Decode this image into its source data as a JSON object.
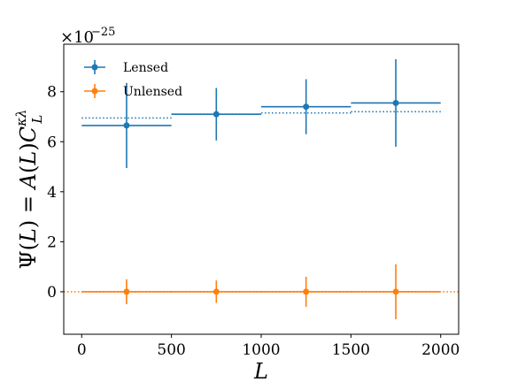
{
  "chart_data": {
    "type": "scatter",
    "xlabel": "L",
    "ylabel": "Ψ(L) = A(L)C_L^{κλ}",
    "y_multiplier": "×10⁻²⁵",
    "xlim": [
      -100,
      2100
    ],
    "ylim": [
      -1.7,
      9.9
    ],
    "xticks": [
      0,
      500,
      1000,
      1500,
      2000
    ],
    "yticks": [
      0,
      2,
      4,
      6,
      8
    ],
    "grid": false,
    "legend_position": "top-left",
    "series": [
      {
        "name": "Lensed",
        "color": "#1f77b4",
        "x": [
          250,
          750,
          1250,
          1750
        ],
        "y": [
          6.65,
          7.1,
          7.4,
          7.55
        ],
        "xerr": [
          250,
          250,
          250,
          250
        ],
        "yerr": [
          1.7,
          1.05,
          1.1,
          1.75
        ],
        "reference": {
          "style": "dotted",
          "y": [
            6.95,
            7.1,
            7.15,
            7.2
          ]
        }
      },
      {
        "name": "Unlensed",
        "color": "#ff7f0e",
        "x": [
          250,
          750,
          1250,
          1750
        ],
        "y": [
          0.0,
          0.0,
          0.0,
          0.0
        ],
        "xerr": [
          250,
          250,
          250,
          250
        ],
        "yerr": [
          0.5,
          0.45,
          0.6,
          1.1
        ],
        "reference": {
          "style": "dotted",
          "y": [
            0.0,
            0.0,
            0.0,
            0.0
          ]
        }
      }
    ]
  }
}
